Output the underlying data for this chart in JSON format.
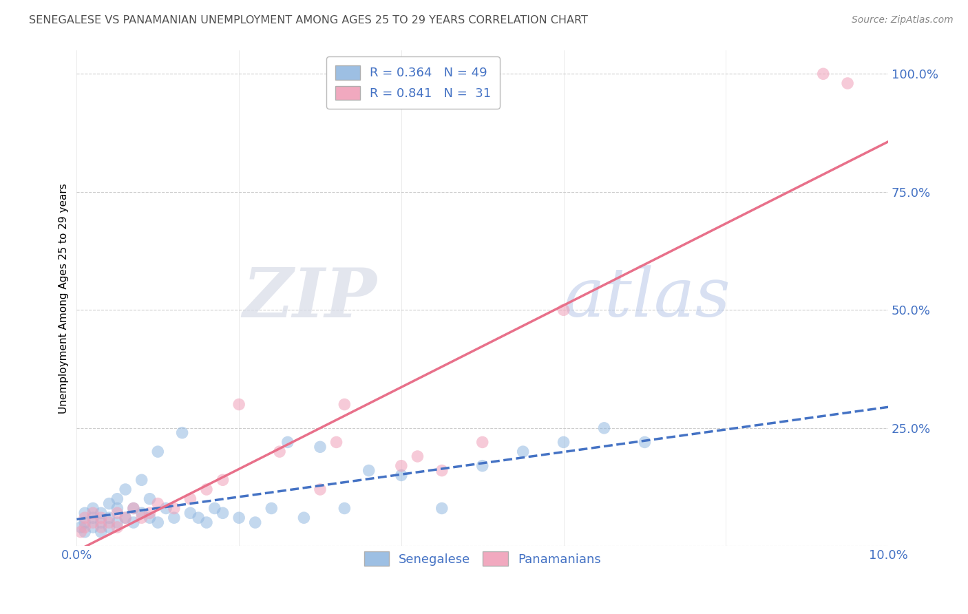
{
  "title": "SENEGALESE VS PANAMANIAN UNEMPLOYMENT AMONG AGES 25 TO 29 YEARS CORRELATION CHART",
  "source": "Source: ZipAtlas.com",
  "ylabel": "Unemployment Among Ages 25 to 29 years",
  "xlim": [
    0.0,
    0.1
  ],
  "ylim": [
    0.0,
    1.05
  ],
  "xticks": [
    0.0,
    0.02,
    0.04,
    0.06,
    0.08,
    0.1
  ],
  "xticklabels": [
    "0.0%",
    "",
    "",
    "",
    "",
    "10.0%"
  ],
  "ytick_positions": [
    0.0,
    0.25,
    0.5,
    0.75,
    1.0
  ],
  "yticklabels": [
    "",
    "25.0%",
    "50.0%",
    "75.0%",
    "100.0%"
  ],
  "watermark_zip": "ZIP",
  "watermark_atlas": "atlas",
  "senegalese_color": "#92b8e0",
  "panamanian_color": "#f0a0b8",
  "senegalese_line_color": "#4472c4",
  "panamanian_line_color": "#e8708a",
  "background_color": "#ffffff",
  "grid_color": "#c8c8c8",
  "title_color": "#505050",
  "axis_label_color": "#4472c4",
  "tick_label_color": "#4472c4",
  "senegalese_x": [
    0.0005,
    0.001,
    0.001,
    0.001,
    0.002,
    0.002,
    0.002,
    0.003,
    0.003,
    0.003,
    0.004,
    0.004,
    0.004,
    0.005,
    0.005,
    0.005,
    0.006,
    0.006,
    0.007,
    0.007,
    0.008,
    0.008,
    0.009,
    0.009,
    0.01,
    0.01,
    0.011,
    0.012,
    0.013,
    0.014,
    0.015,
    0.016,
    0.017,
    0.018,
    0.02,
    0.022,
    0.024,
    0.026,
    0.028,
    0.03,
    0.033,
    0.036,
    0.04,
    0.045,
    0.05,
    0.055,
    0.06,
    0.065,
    0.07
  ],
  "senegalese_y": [
    0.04,
    0.03,
    0.05,
    0.07,
    0.04,
    0.06,
    0.08,
    0.05,
    0.07,
    0.03,
    0.06,
    0.09,
    0.04,
    0.05,
    0.08,
    0.1,
    0.06,
    0.12,
    0.05,
    0.08,
    0.07,
    0.14,
    0.06,
    0.1,
    0.05,
    0.2,
    0.08,
    0.06,
    0.24,
    0.07,
    0.06,
    0.05,
    0.08,
    0.07,
    0.06,
    0.05,
    0.08,
    0.22,
    0.06,
    0.21,
    0.08,
    0.16,
    0.15,
    0.08,
    0.17,
    0.2,
    0.22,
    0.25,
    0.22
  ],
  "panamanian_x": [
    0.0005,
    0.001,
    0.001,
    0.002,
    0.002,
    0.003,
    0.003,
    0.004,
    0.005,
    0.005,
    0.006,
    0.007,
    0.008,
    0.009,
    0.01,
    0.012,
    0.014,
    0.016,
    0.018,
    0.02,
    0.025,
    0.03,
    0.032,
    0.033,
    0.04,
    0.042,
    0.045,
    0.05,
    0.06,
    0.092,
    0.095
  ],
  "panamanian_y": [
    0.03,
    0.04,
    0.06,
    0.05,
    0.07,
    0.04,
    0.06,
    0.05,
    0.07,
    0.04,
    0.06,
    0.08,
    0.06,
    0.07,
    0.09,
    0.08,
    0.1,
    0.12,
    0.14,
    0.3,
    0.2,
    0.12,
    0.22,
    0.3,
    0.17,
    0.19,
    0.16,
    0.22,
    0.5,
    1.0,
    0.98
  ],
  "sen_line_x": [
    0.0,
    0.1
  ],
  "sen_line_y": [
    0.02,
    0.22
  ],
  "pan_line_x": [
    0.0,
    0.1
  ],
  "pan_line_y": [
    0.0,
    0.8
  ]
}
